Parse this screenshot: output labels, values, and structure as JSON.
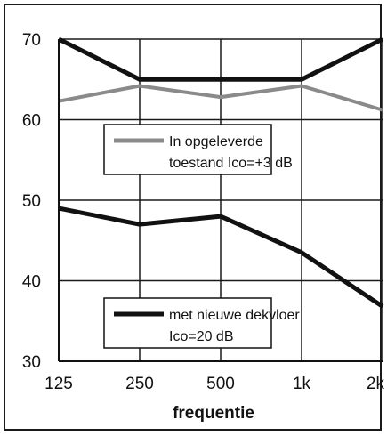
{
  "chart_data": {
    "type": "line",
    "x": [
      "125",
      "250",
      "500",
      "1k",
      "2k"
    ],
    "xlabel": "frequentie",
    "ylabel": "",
    "ylim": [
      30,
      70
    ],
    "yticks": [
      30,
      40,
      50,
      60,
      70
    ],
    "grid": true,
    "series": [
      {
        "name": "met nieuwe dekvloer",
        "name_line2": "Ico=20 dB",
        "values": [
          70,
          65,
          65,
          65,
          70
        ],
        "color": "#111111"
      },
      {
        "name": "In opgeleverde",
        "name_line2": "toestand Ico=+3 dB",
        "values": [
          62.3,
          64.2,
          62.8,
          64.2,
          61.2
        ],
        "color": "#8a8a8a"
      },
      {
        "name": "met nieuwe dekvloer",
        "name_line2": "Ico=20 dB",
        "values": [
          49,
          47,
          48,
          43.5,
          36.8
        ],
        "color": "#111111"
      }
    ],
    "legends": [
      {
        "line1": "In opgeleverde",
        "line2": "toestand Ico=+3 dB",
        "color": "#8a8a8a"
      },
      {
        "line1": "met nieuwe dekvloer",
        "line2": "Ico=20 dB",
        "color": "#111111"
      }
    ]
  }
}
